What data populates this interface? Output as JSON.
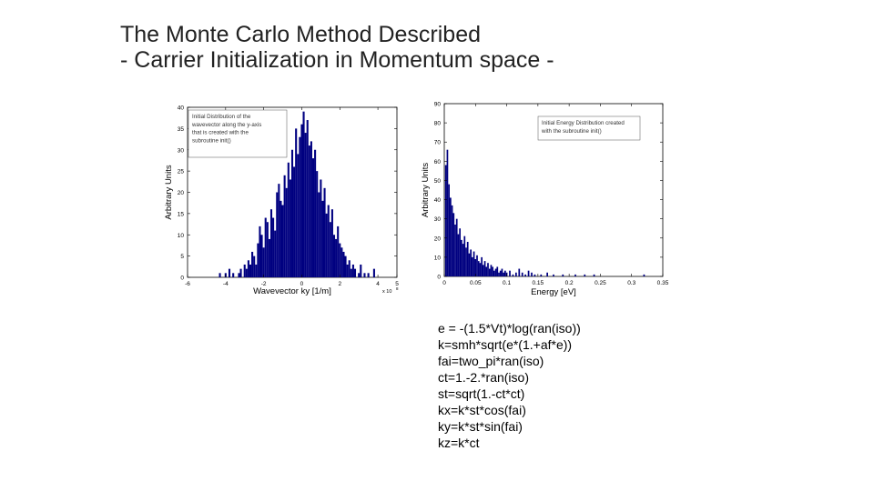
{
  "slide": {
    "title_line1": "The Monte Carlo Method Described",
    "title_line2": "- Carrier Initialization in Momentum space -"
  },
  "colors": {
    "bar": "#000080",
    "axis": "#000000",
    "text": "#222222"
  },
  "chart_data": [
    {
      "type": "bar",
      "xlabel": "Wavevector ky [1/m]",
      "ylabel": "Arbitrary Units",
      "x_multiplier": "x 10",
      "x_multiplier_exp": "8",
      "xlim": [
        -6,
        5
      ],
      "ylim": [
        0,
        40
      ],
      "xticks": [
        -6,
        -4,
        -2,
        0,
        2,
        4,
        5
      ],
      "yticks": [
        0,
        5,
        10,
        15,
        20,
        25,
        30,
        35,
        40
      ],
      "legend_lines": [
        "Initial Distribution of the",
        "wavevector along the y-axis",
        "that is created with the",
        "subroutine init()"
      ],
      "legend_position": "top-left",
      "bin_width": 0.1,
      "x": [
        -4.3,
        -4.0,
        -3.8,
        -3.6,
        -3.3,
        -3.2,
        -3.0,
        -2.9,
        -2.8,
        -2.7,
        -2.6,
        -2.5,
        -2.4,
        -2.3,
        -2.2,
        -2.1,
        -2.0,
        -1.9,
        -1.8,
        -1.7,
        -1.6,
        -1.5,
        -1.4,
        -1.3,
        -1.2,
        -1.1,
        -1.0,
        -0.9,
        -0.8,
        -0.7,
        -0.6,
        -0.5,
        -0.4,
        -0.3,
        -0.2,
        -0.1,
        0.0,
        0.1,
        0.2,
        0.3,
        0.4,
        0.5,
        0.6,
        0.7,
        0.8,
        0.9,
        1.0,
        1.1,
        1.2,
        1.3,
        1.4,
        1.5,
        1.6,
        1.7,
        1.8,
        1.9,
        2.0,
        2.1,
        2.2,
        2.3,
        2.4,
        2.5,
        2.6,
        2.7,
        2.8,
        3.0,
        3.1,
        3.3,
        3.5,
        3.8
      ],
      "values": [
        1,
        1,
        2,
        1,
        1,
        2,
        3,
        2,
        4,
        3,
        6,
        5,
        3,
        8,
        12,
        10,
        7,
        14,
        13,
        9,
        16,
        14,
        11,
        20,
        22,
        18,
        17,
        24,
        21,
        27,
        23,
        30,
        26,
        35,
        29,
        33,
        36,
        39,
        34,
        37,
        31,
        32,
        28,
        30,
        25,
        20,
        23,
        18,
        21,
        15,
        17,
        13,
        16,
        10,
        9,
        12,
        8,
        7,
        6,
        5,
        3,
        4,
        2,
        3,
        2,
        1,
        3,
        1,
        1,
        2
      ]
    },
    {
      "type": "bar",
      "xlabel": "Energy  [eV]",
      "ylabel": "Arbitrary Units",
      "xlim": [
        0,
        0.35
      ],
      "ylim": [
        0,
        90
      ],
      "xticks": [
        0,
        0.05,
        0.1,
        0.15,
        0.2,
        0.25,
        0.3,
        0.35
      ],
      "yticks": [
        0,
        10,
        20,
        30,
        40,
        50,
        60,
        70,
        80,
        90
      ],
      "legend_lines": [
        "Initial Energy Distribution created",
        "with the subroutine init()"
      ],
      "legend_position": "top-right",
      "bin_width": 0.0025,
      "x": [
        0.0025,
        0.005,
        0.0075,
        0.01,
        0.0125,
        0.015,
        0.0175,
        0.02,
        0.0225,
        0.025,
        0.0275,
        0.03,
        0.0325,
        0.035,
        0.0375,
        0.04,
        0.0425,
        0.045,
        0.0475,
        0.05,
        0.0525,
        0.055,
        0.0575,
        0.06,
        0.0625,
        0.065,
        0.0675,
        0.07,
        0.0725,
        0.075,
        0.0775,
        0.08,
        0.0825,
        0.085,
        0.0875,
        0.09,
        0.0925,
        0.095,
        0.0975,
        0.1,
        0.105,
        0.11,
        0.115,
        0.12,
        0.125,
        0.13,
        0.135,
        0.14,
        0.145,
        0.155,
        0.165,
        0.175,
        0.19,
        0.21,
        0.225,
        0.24,
        0.32
      ],
      "values": [
        58,
        66,
        48,
        41,
        37,
        33,
        27,
        30,
        22,
        25,
        19,
        17,
        21,
        15,
        18,
        12,
        14,
        10,
        13,
        9,
        11,
        8,
        7,
        10,
        6,
        8,
        5,
        7,
        4,
        6,
        5,
        3,
        4,
        5,
        2,
        3,
        4,
        2,
        3,
        2,
        3,
        1,
        2,
        4,
        2,
        1,
        3,
        2,
        1,
        1,
        2,
        1,
        1,
        1,
        1,
        1,
        1
      ]
    }
  ],
  "code_lines": [
    "e = -(1.5*Vt)*log(ran(iso))",
    "k=smh*sqrt(e*(1.+af*e))",
    "fai=two_pi*ran(iso)",
    "ct=1.-2.*ran(iso)",
    "st=sqrt(1.-ct*ct)",
    "kx=k*st*cos(fai)",
    "ky=k*st*sin(fai)",
    "kz=k*ct"
  ]
}
